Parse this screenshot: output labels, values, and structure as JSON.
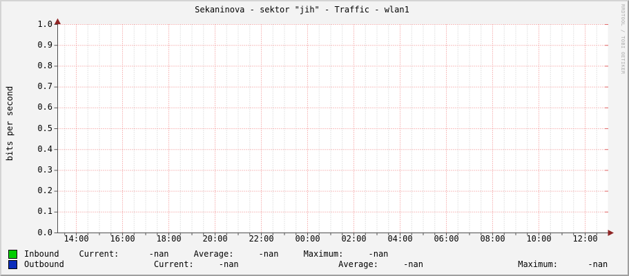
{
  "title": "Sekaninova - sektor \"jih\" - Traffic - wlan1",
  "watermark": "RRDTOOL / TOBI OETIKER",
  "colors": {
    "background": "#f3f3f3",
    "canvas": "#ffffff",
    "border_light": "#d4d4d4",
    "border_dark": "#9e9e9e",
    "major_grid": "#f08080",
    "major_grid_end": "#e06868",
    "minor_grid": "#c9c9c9",
    "axis": "#4d4d4d",
    "arrow": "#8f2525",
    "tick": "#555555",
    "text": "#000000",
    "watermark": "#adadad",
    "inbound": "#00cc00",
    "outbound": "#0c2dbb"
  },
  "chart_data": {
    "type": "line",
    "title": "Sekaninova - sektor \"jih\" - Traffic - wlan1",
    "xlabel": "",
    "ylabel": "bits per second",
    "ylim": [
      0.0,
      1.0
    ],
    "y_tick_step": 0.1,
    "y_tick_labels": [
      "1.0",
      "0.9",
      "0.8",
      "0.7",
      "0.6",
      "0.5",
      "0.4",
      "0.3",
      "0.2",
      "0.1",
      "0.0"
    ],
    "x_tick_labels": [
      "14:00",
      "16:00",
      "18:00",
      "20:00",
      "22:00",
      "00:00",
      "02:00",
      "04:00",
      "06:00",
      "08:00",
      "10:00",
      "12:00"
    ],
    "x_minor_ticks_per_interval": 3,
    "grid": true,
    "legend_position": "bottom",
    "series": [
      {
        "name": "Inbound",
        "color": "#00cc00",
        "values": []
      },
      {
        "name": "Outbound",
        "color": "#0c2dbb",
        "values": []
      }
    ]
  },
  "legend": {
    "rows": [
      {
        "label": "Inbound",
        "swatch_color": "#00cc00",
        "current": "-nan",
        "average": "-nan",
        "maximum": "-nan",
        "display": "Inbound    Current:      -nan     Average:     -nan     Maximum:     -nan"
      },
      {
        "label": "Outbound",
        "swatch_color": "#0c2dbb",
        "current": "-nan",
        "average": "-nan",
        "maximum": "-nan",
        "display": "Outbound                  Current:     -nan                    Average:     -nan                   Maximum:      -nan"
      }
    ]
  }
}
